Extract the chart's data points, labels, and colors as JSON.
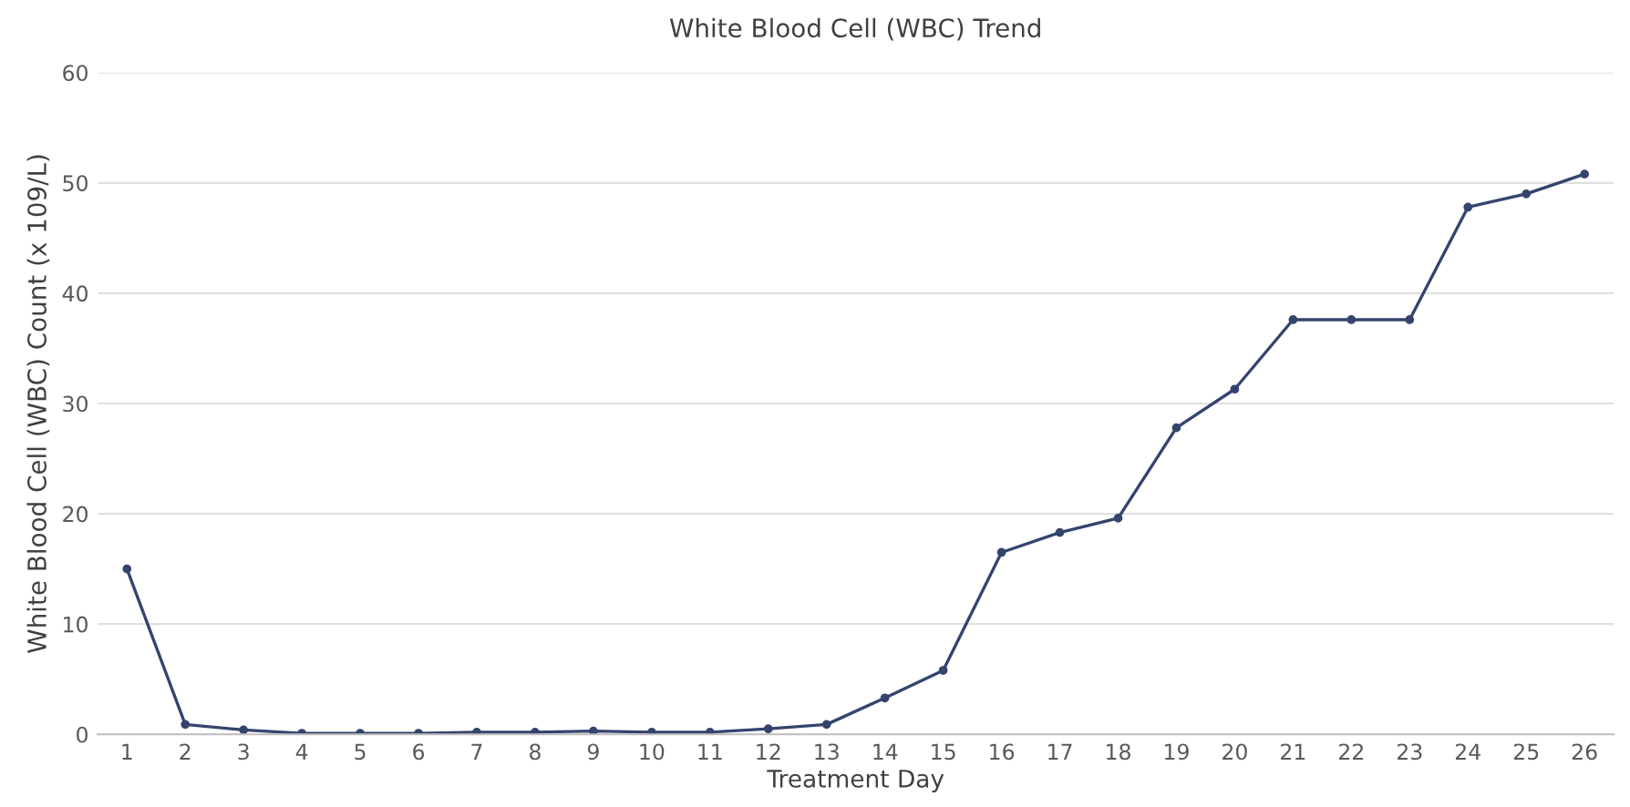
{
  "chart_data": {
    "type": "line",
    "title": "White Blood Cell (WBC) Trend",
    "xlabel": "Treatment Day",
    "ylabel": "White Blood Cell (WBC) Count (x 109/L)",
    "categories": [
      "1",
      "2",
      "3",
      "4",
      "5",
      "6",
      "7",
      "8",
      "9",
      "10",
      "11",
      "12",
      "13",
      "14",
      "15",
      "16",
      "17",
      "18",
      "19",
      "20",
      "21",
      "22",
      "23",
      "24",
      "25",
      "26"
    ],
    "series": [
      {
        "color": "#34446e",
        "values": [
          15,
          0.9,
          0.4,
          0.1,
          0.1,
          0.1,
          0.2,
          0.2,
          0.3,
          0.2,
          0.2,
          0.5,
          0.9,
          3.3,
          5.8,
          16.5,
          18.3,
          19.6,
          27.8,
          31.3,
          37.6,
          37.6,
          37.6,
          47.8,
          49,
          50.8
        ]
      }
    ],
    "ylim": [
      0,
      60
    ],
    "yticks": [
      0,
      10,
      20,
      30,
      40,
      50,
      60
    ],
    "grid": "y",
    "marker": "circle",
    "line_style": "solid",
    "legend": false
  }
}
